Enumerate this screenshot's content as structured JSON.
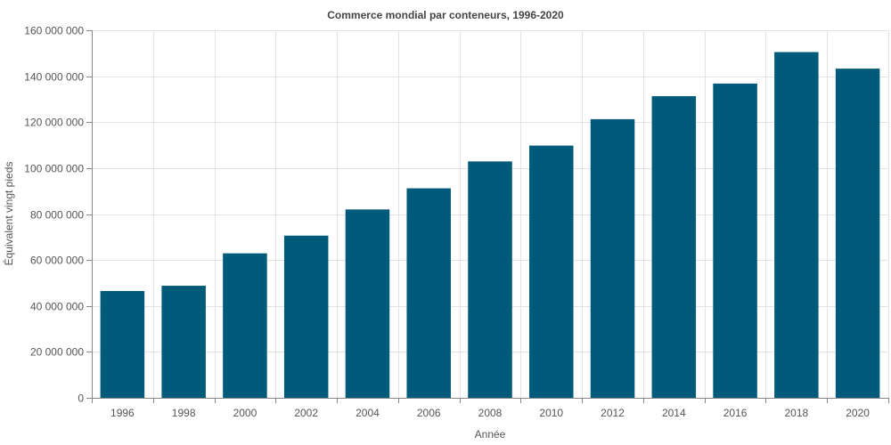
{
  "chart_data": {
    "type": "bar",
    "title": "Commerce mondial par conteneurs, 1996-2020",
    "xlabel": "Année",
    "ylabel": "Équivalent vingt pieds",
    "categories": [
      "1996",
      "1998",
      "2000",
      "2002",
      "2004",
      "2006",
      "2008",
      "2010",
      "2012",
      "2014",
      "2016",
      "2018",
      "2020"
    ],
    "series": [
      {
        "values": [
          46500000,
          48800000,
          62900000,
          70600000,
          82000000,
          91200000,
          102900000,
          109800000,
          121300000,
          131300000,
          136800000,
          150500000,
          143300000
        ]
      }
    ],
    "ylim": [
      0,
      160000000
    ],
    "yticks": [
      0,
      20000000,
      40000000,
      60000000,
      80000000,
      100000000,
      120000000,
      140000000,
      160000000
    ],
    "ytick_labels": [
      "0",
      "20 000 000",
      "40 000 000",
      "60 000 000",
      "80 000 000",
      "100 000 000",
      "120 000 000",
      "140 000 000",
      "160 000 000"
    ],
    "grid": true,
    "bar_color": "#005b7a",
    "grid_color": "#e3e3e3",
    "axis_color": "#888888"
  }
}
